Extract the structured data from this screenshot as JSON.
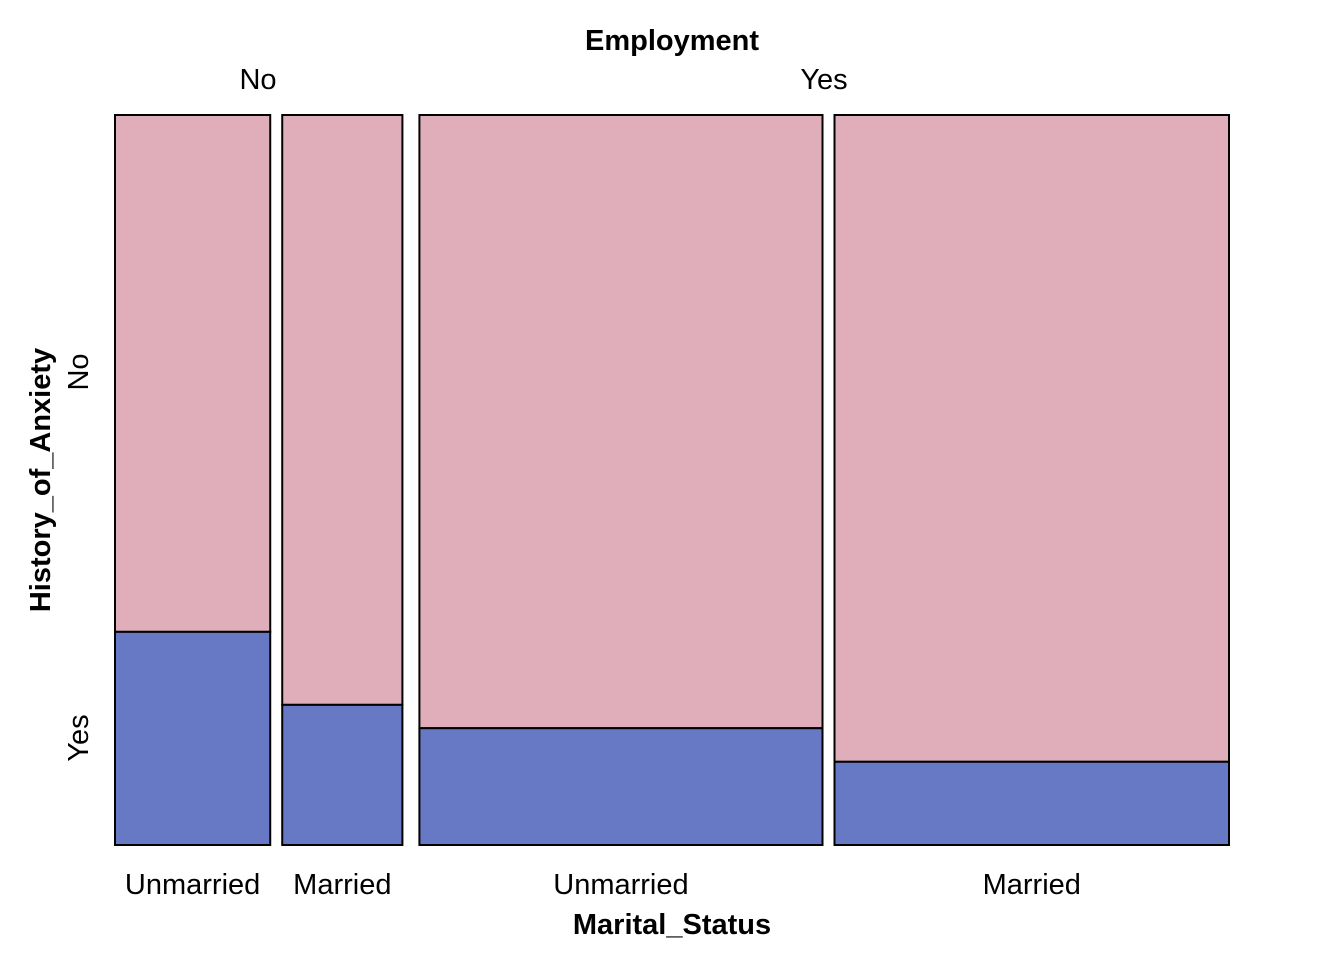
{
  "chart_data": {
    "type": "mosaic",
    "top_variable": "Employment",
    "x_variable": "Marital_Status",
    "y_variable": "History_of_Anxiety",
    "employment_levels": [
      "No",
      "Yes"
    ],
    "y_levels": [
      "No",
      "Yes"
    ],
    "colors": {
      "No": "#E0AEBA",
      "Yes": "#6778C4"
    },
    "cells": [
      {
        "employment": "No",
        "marital_status": "Unmarried",
        "width_fraction": 0.1426,
        "anxiety_yes_fraction": 0.292
      },
      {
        "employment": "No",
        "marital_status": "Married",
        "width_fraction": 0.1104,
        "anxiety_yes_fraction": 0.192
      },
      {
        "employment": "Yes",
        "marital_status": "Unmarried",
        "width_fraction": 0.3703,
        "anxiety_yes_fraction": 0.16
      },
      {
        "employment": "Yes",
        "marital_status": "Married",
        "width_fraction": 0.3624,
        "anxiety_yes_fraction": 0.114
      }
    ]
  }
}
